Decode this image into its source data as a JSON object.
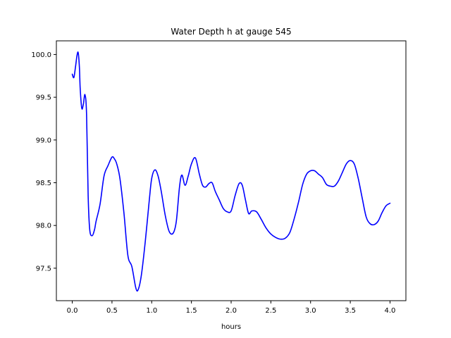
{
  "chart_data": {
    "type": "line",
    "title": "Water Depth h at gauge 545",
    "xlabel": "hours",
    "ylabel": "",
    "xlim": [
      -0.2,
      4.2
    ],
    "ylim": [
      97.12,
      100.16
    ],
    "x_ticks": [
      0.0,
      0.5,
      1.0,
      1.5,
      2.0,
      2.5,
      3.0,
      3.5,
      4.0
    ],
    "x_tick_labels": [
      "0.0",
      "0.5",
      "1.0",
      "1.5",
      "2.0",
      "2.5",
      "3.0",
      "3.5",
      "4.0"
    ],
    "y_ticks": [
      97.5,
      98.0,
      98.5,
      99.0,
      99.5,
      100.0
    ],
    "y_tick_labels": [
      "97.5",
      "98.0",
      "98.5",
      "99.0",
      "99.5",
      "100.0"
    ],
    "grid": false,
    "series": [
      {
        "color": "#0000ff",
        "x": [
          0.0,
          0.02,
          0.04,
          0.06,
          0.075,
          0.09,
          0.1,
          0.12,
          0.14,
          0.16,
          0.18,
          0.2,
          0.22,
          0.25,
          0.28,
          0.3,
          0.35,
          0.4,
          0.45,
          0.5,
          0.53,
          0.56,
          0.6,
          0.65,
          0.7,
          0.75,
          0.8,
          0.83,
          0.87,
          0.92,
          0.97,
          1.0,
          1.04,
          1.08,
          1.12,
          1.17,
          1.22,
          1.27,
          1.31,
          1.35,
          1.38,
          1.42,
          1.46,
          1.5,
          1.55,
          1.6,
          1.64,
          1.68,
          1.72,
          1.76,
          1.8,
          1.85,
          1.9,
          1.95,
          2.0,
          2.05,
          2.1,
          2.14,
          2.18,
          2.22,
          2.26,
          2.32,
          2.38,
          2.44,
          2.5,
          2.56,
          2.62,
          2.68,
          2.74,
          2.8,
          2.85,
          2.9,
          2.95,
          3.0,
          3.05,
          3.1,
          3.15,
          3.2,
          3.25,
          3.3,
          3.35,
          3.4,
          3.45,
          3.5,
          3.55,
          3.6,
          3.65,
          3.7,
          3.75,
          3.8,
          3.85,
          3.9,
          3.95,
          4.0
        ],
        "y": [
          99.77,
          99.73,
          99.85,
          99.99,
          100.02,
          99.85,
          99.6,
          99.37,
          99.42,
          99.53,
          99.3,
          98.35,
          97.95,
          97.88,
          97.95,
          98.05,
          98.25,
          98.58,
          98.7,
          98.8,
          98.78,
          98.72,
          98.55,
          98.15,
          97.65,
          97.52,
          97.27,
          97.25,
          97.42,
          97.82,
          98.3,
          98.55,
          98.65,
          98.58,
          98.4,
          98.12,
          97.93,
          97.91,
          98.05,
          98.45,
          98.59,
          98.47,
          98.58,
          98.72,
          98.79,
          98.6,
          98.47,
          98.45,
          98.49,
          98.5,
          98.4,
          98.3,
          98.2,
          98.16,
          98.17,
          98.35,
          98.49,
          98.47,
          98.3,
          98.14,
          98.17,
          98.16,
          98.07,
          97.97,
          97.9,
          97.86,
          97.84,
          97.85,
          97.92,
          98.1,
          98.28,
          98.48,
          98.6,
          98.64,
          98.64,
          98.6,
          98.56,
          98.48,
          98.46,
          98.46,
          98.52,
          98.62,
          98.72,
          98.76,
          98.72,
          98.55,
          98.32,
          98.1,
          98.02,
          98.01,
          98.05,
          98.15,
          98.23,
          98.26
        ]
      }
    ]
  }
}
